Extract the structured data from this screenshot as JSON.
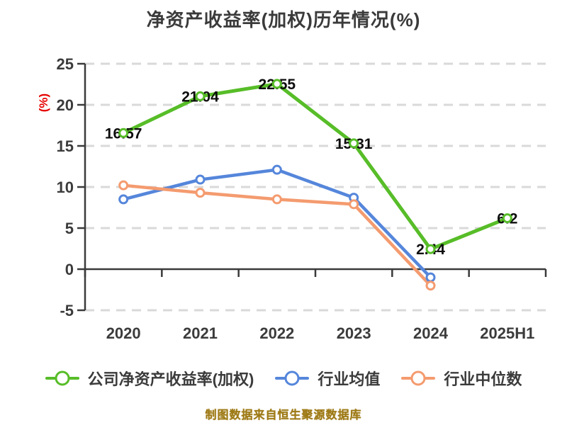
{
  "chart": {
    "title": "净资产收益率(加权)历年情况(%)",
    "y_axis_unit": "(%)"
  },
  "footer": {
    "source_note": "制图数据来自恒生聚源数据库"
  },
  "colors": {
    "title": "#3a3a3a",
    "axis": "#3a3a3a",
    "tick_label": "#3b3b3b",
    "grid": "#d9d9d9",
    "value_label": "#0d0d0d",
    "y_unit_label": "#e60000",
    "footer": "#9e7a16",
    "marker_fill": "#ffffff"
  },
  "chart_data": {
    "type": "line",
    "title": "净资产收益率(加权)历年情况(%)",
    "xlabel": "",
    "ylabel": "(%)",
    "categories": [
      "2020",
      "2021",
      "2022",
      "2023",
      "2024",
      "2025H1"
    ],
    "ylim": [
      -5,
      25
    ],
    "y_ticks": [
      25,
      20,
      15,
      10,
      5,
      0,
      -5
    ],
    "grid": "horizontal-dashed",
    "legend_position": "bottom",
    "series": [
      {
        "name": "公司净资产收益率(加权)",
        "color": "#57bd28",
        "values": [
          16.57,
          21.04,
          22.55,
          15.31,
          2.44,
          6.2
        ],
        "point_labels": [
          "16.57",
          "21.04",
          "22.55",
          "15.31",
          "2.44",
          "6.2"
        ]
      },
      {
        "name": "行业均值",
        "color": "#5586db",
        "values": [
          8.5,
          10.9,
          12.1,
          8.7,
          -1.0,
          null
        ],
        "point_labels": []
      },
      {
        "name": "行业中位数",
        "color": "#f49b6f",
        "values": [
          10.2,
          9.3,
          8.5,
          7.9,
          -2.0,
          null
        ],
        "point_labels": []
      }
    ]
  }
}
